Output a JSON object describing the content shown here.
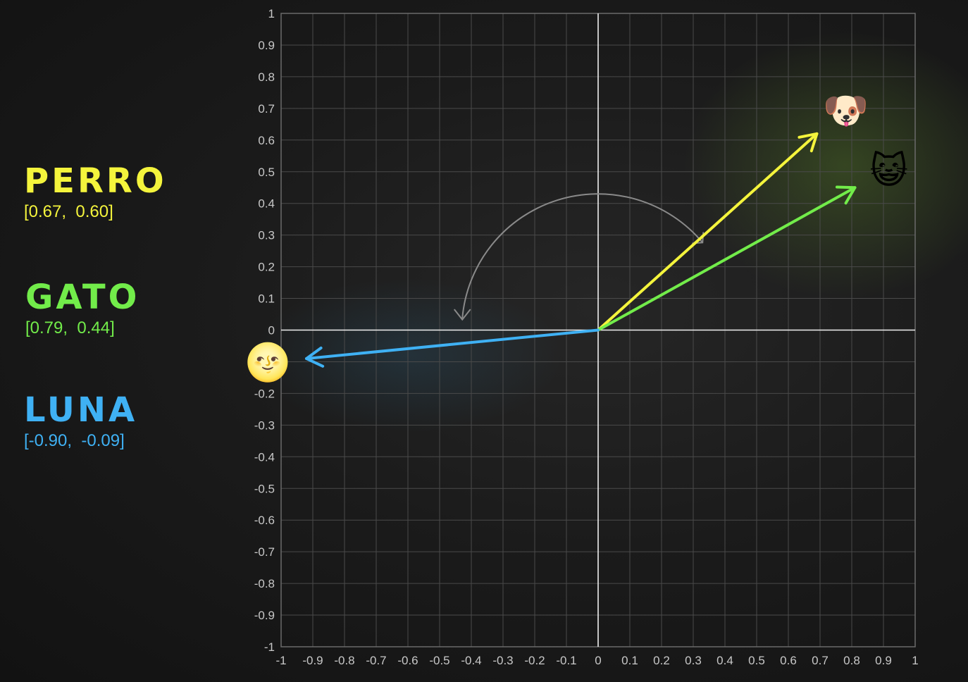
{
  "colors": {
    "perro": "#f4f43c",
    "gato": "#72ec4a",
    "luna": "#3fb1f4",
    "grid": "#4a4a4a",
    "axis": "#f0f0f0",
    "tick_text": "#c8c8c8",
    "rotation_arrow": "#8a8a8a"
  },
  "words": [
    {
      "key": "perro",
      "label": "PERRO",
      "vector": "[0.67,  0.60]"
    },
    {
      "key": "gato",
      "label": "GATO",
      "vector": "[0.79,  0.44]"
    },
    {
      "key": "luna",
      "label": "LUNA",
      "vector": "[-0.90,  -0.09]"
    }
  ],
  "chart_data": {
    "type": "vector-plot",
    "xlim": [
      -1,
      1
    ],
    "ylim": [
      -1,
      1
    ],
    "grid": true,
    "x_ticks": [
      "-1",
      "-0.9",
      "-0.8",
      "-0.7",
      "-0.6",
      "-0.5",
      "-0.4",
      "-0.3",
      "-0.2",
      "-0.1",
      "0",
      "0.1",
      "0.2",
      "0.3",
      "0.4",
      "0.5",
      "0.6",
      "0.7",
      "0.8",
      "0.9",
      "1"
    ],
    "y_ticks": [
      "1",
      "0.9",
      "0.8",
      "0.7",
      "0.6",
      "0.5",
      "0.4",
      "0.3",
      "0.2",
      "0.1",
      "0",
      "",
      "-0.2",
      "-0.3",
      "-0.4",
      "-0.5",
      "-0.6",
      "-0.7",
      "-0.8",
      "-0.9",
      "-1"
    ],
    "vectors": [
      {
        "key": "perro",
        "x": 0.69,
        "y": 0.62,
        "icon": "dog-face-icon",
        "glyph": "🐶"
      },
      {
        "key": "gato",
        "x": 0.81,
        "y": 0.45,
        "icon": "cat-face-icon",
        "glyph": "😺"
      },
      {
        "key": "luna",
        "x": -0.92,
        "y": -0.09,
        "icon": "moon-face-icon",
        "glyph": "🌝"
      }
    ],
    "rotation_arc": {
      "from_deg": 40,
      "to_deg": 175,
      "radius": 0.43
    }
  }
}
